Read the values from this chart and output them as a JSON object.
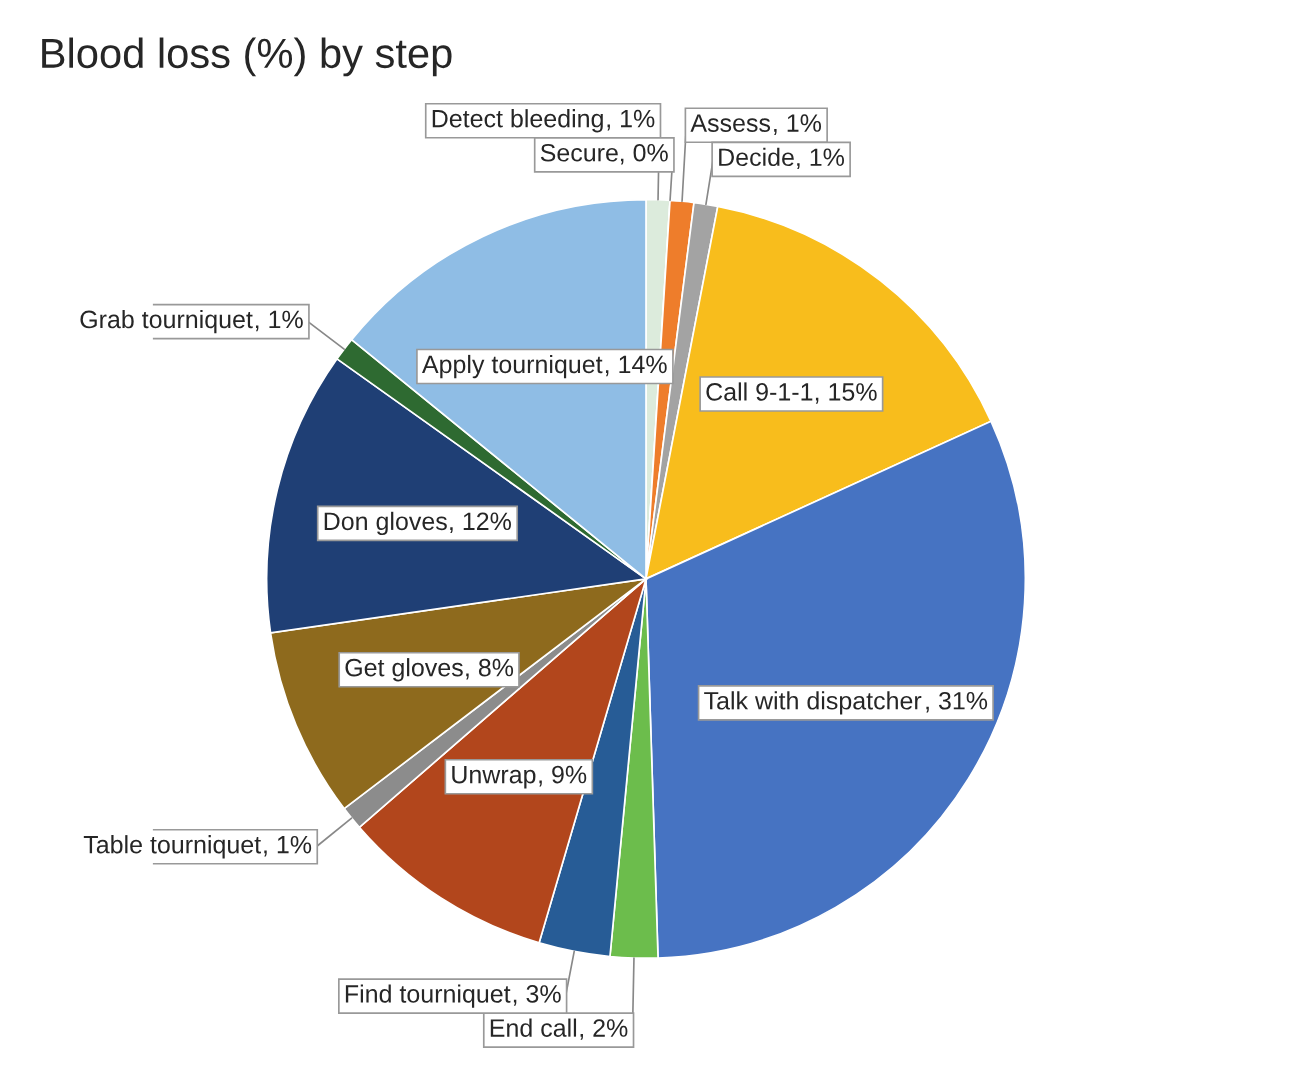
{
  "chart_data": {
    "type": "pie",
    "title": "Blood loss (%) by step",
    "categories": [
      "Detect bleeding",
      "Secure",
      "Assess",
      "Decide",
      "Call 9-1-1",
      "Talk with dispatcher",
      "End call",
      "Find tourniquet",
      "Unwrap",
      "Table tourniquet",
      "Get gloves",
      "Don gloves",
      "Grab tourniquet",
      "Apply tourniquet"
    ],
    "values": [
      1,
      0,
      1,
      1,
      15,
      31,
      2,
      3,
      9,
      1,
      8,
      12,
      1,
      14
    ],
    "colors": [
      "#dcebdc",
      "#f4f4f4",
      "#ee7d2b",
      "#a3a3a3",
      "#f8bd1c",
      "#4673c2",
      "#6cbd4c",
      "#275c96",
      "#b2461c",
      "#8c8c8c",
      "#8e6a1d",
      "#1f3f75",
      "#2e6a31",
      "#8fbde5"
    ],
    "value_labels": [
      ", 1%",
      ", 0%",
      ", 1%",
      ", 1%",
      ", 15%",
      ", 31%",
      ", 2%",
      ", 3%",
      ", 9%",
      ", 1%",
      ", 8%",
      ", 12%",
      ", 1%",
      ", 14%"
    ],
    "legend": false
  }
}
